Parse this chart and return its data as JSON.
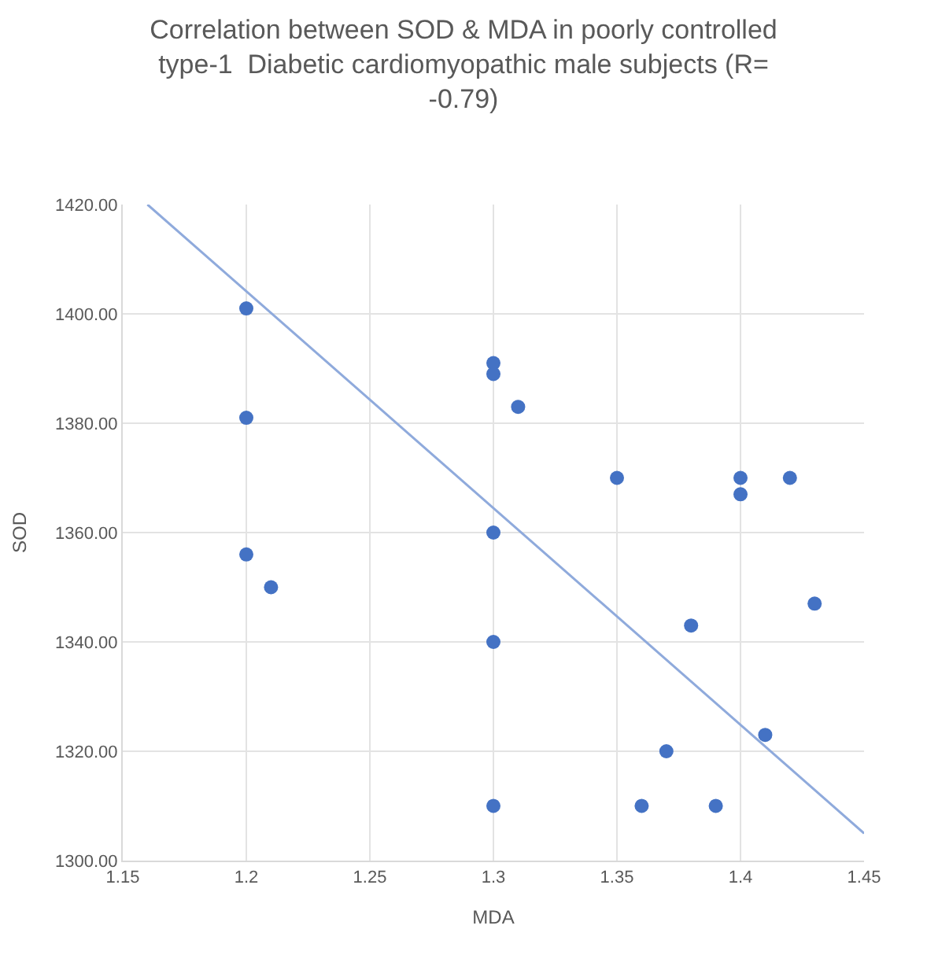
{
  "chart_data": {
    "type": "scatter",
    "title": "Correlation between SOD & MDA in poorly controlled type-1  Diabetic cardiomyopathic male subjects (R= -0.79)",
    "xlabel": "MDA",
    "ylabel": "SOD",
    "xlim": [
      1.15,
      1.45
    ],
    "xticks": [
      1.15,
      1.2,
      1.25,
      1.3,
      1.35,
      1.4,
      1.45
    ],
    "ylim": [
      1300,
      1420
    ],
    "yticks": [
      {
        "value": 1300,
        "label": "1300.00"
      },
      {
        "value": 1320,
        "label": "1320.00"
      },
      {
        "value": 1340,
        "label": "1340.00"
      },
      {
        "value": 1360,
        "label": "1360.00"
      },
      {
        "value": 1380,
        "label": "1380.00"
      },
      {
        "value": 1400,
        "label": "1400.00"
      },
      {
        "value": 1420,
        "label": "1420.00"
      }
    ],
    "grid": true,
    "series": [
      {
        "marker": "circle",
        "color": "#4472c4",
        "x": [
          1.2,
          1.2,
          1.2,
          1.21,
          1.3,
          1.3,
          1.31,
          1.3,
          1.3,
          1.3,
          1.35,
          1.4,
          1.4,
          1.42,
          1.43,
          1.38,
          1.37,
          1.41,
          1.36,
          1.39
        ],
        "values": [
          1401,
          1381,
          1356,
          1350,
          1391,
          1389,
          1383,
          1360,
          1340,
          1310,
          1370,
          1370,
          1367,
          1370,
          1347,
          1343,
          1320,
          1323,
          1310,
          1310
        ]
      },
      {
        "type": "line",
        "marker": "none",
        "color": "#8faadc",
        "x": [
          1.16,
          1.45
        ],
        "values": [
          1420,
          1305
        ]
      }
    ]
  }
}
